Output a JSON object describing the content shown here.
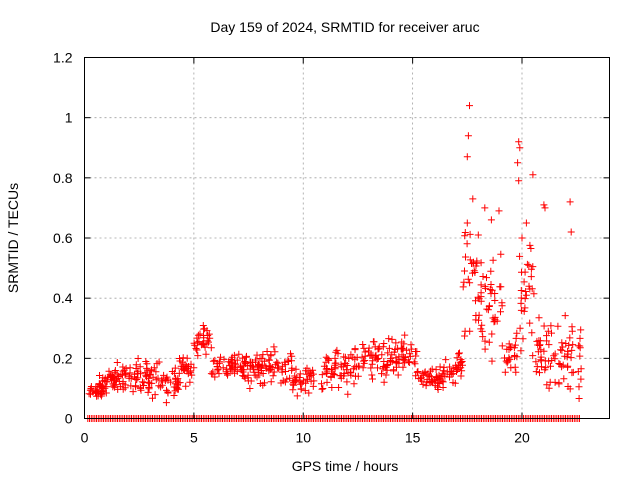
{
  "chart_data": {
    "type": "scatter",
    "title": "Day 159 of 2024, SRMTID for receiver aruc",
    "xlabel": "GPS time / hours",
    "ylabel": "SRMTID / TECUs",
    "xlim": [
      0,
      24
    ],
    "ylim": [
      0,
      1.2
    ],
    "xticks": [
      0,
      5,
      10,
      15,
      20
    ],
    "yticks": [
      0,
      0.2,
      0.4,
      0.6,
      0.8,
      1,
      1.2
    ],
    "xtick_labels": [
      "0",
      "5",
      "10",
      "15",
      "20"
    ],
    "ytick_labels": [
      "0",
      "0.2",
      "0.4",
      "0.6",
      "0.8",
      "1",
      "1.2"
    ],
    "grid": true,
    "marker": "+",
    "color": "#ff0000",
    "series": [
      {
        "name": "SRMTID",
        "x_range": [
          0.15,
          22.7
        ],
        "zero_level_x_step": 0.08,
        "clusters": [
          {
            "x": [
              0.2,
              1.0
            ],
            "y_mean": 0.09,
            "y_spread": 0.02
          },
          {
            "x": [
              0.6,
              1.4
            ],
            "y_mean": 0.13,
            "y_spread": 0.03
          },
          {
            "x": [
              1.4,
              2.4
            ],
            "y_mean": 0.14,
            "y_spread": 0.04
          },
          {
            "x": [
              2.4,
              3.5
            ],
            "y_mean": 0.13,
            "y_spread": 0.06
          },
          {
            "x": [
              3.5,
              4.3
            ],
            "y_mean": 0.11,
            "y_spread": 0.05
          },
          {
            "x": [
              4.3,
              5.0
            ],
            "y_mean": 0.16,
            "y_spread": 0.06
          },
          {
            "x": [
              5.0,
              5.8
            ],
            "y_mean": 0.26,
            "y_spread": 0.05
          },
          {
            "x": [
              5.8,
              7.5
            ],
            "y_mean": 0.17,
            "y_spread": 0.04
          },
          {
            "x": [
              7.5,
              9.5
            ],
            "y_mean": 0.17,
            "y_spread": 0.05
          },
          {
            "x": [
              9.5,
              10.5
            ],
            "y_mean": 0.13,
            "y_spread": 0.04
          },
          {
            "x": [
              10.8,
              12.5
            ],
            "y_mean": 0.17,
            "y_spread": 0.06
          },
          {
            "x": [
              12.5,
              14.0
            ],
            "y_mean": 0.2,
            "y_spread": 0.06
          },
          {
            "x": [
              14.0,
              15.2
            ],
            "y_mean": 0.21,
            "y_spread": 0.06
          },
          {
            "x": [
              15.2,
              16.4
            ],
            "y_mean": 0.13,
            "y_spread": 0.03
          },
          {
            "x": [
              16.4,
              17.3
            ],
            "y_mean": 0.17,
            "y_spread": 0.06
          },
          {
            "x": [
              17.3,
              18.0
            ],
            "y_mean": 0.45,
            "y_spread": 0.16
          },
          {
            "x": [
              18.0,
              19.2
            ],
            "y_mean": 0.38,
            "y_spread": 0.14
          },
          {
            "x": [
              19.2,
              19.8
            ],
            "y_mean": 0.2,
            "y_spread": 0.07
          },
          {
            "x": [
              19.8,
              20.6
            ],
            "y_mean": 0.42,
            "y_spread": 0.15
          },
          {
            "x": [
              20.6,
              21.6
            ],
            "y_mean": 0.22,
            "y_spread": 0.12
          },
          {
            "x": [
              21.6,
              22.7
            ],
            "y_mean": 0.2,
            "y_spread": 0.12
          }
        ],
        "outliers": [
          [
            17.6,
            1.04
          ],
          [
            17.55,
            0.94
          ],
          [
            17.5,
            0.87
          ],
          [
            19.85,
            0.92
          ],
          [
            19.9,
            0.9
          ],
          [
            19.8,
            0.85
          ],
          [
            20.5,
            0.81
          ],
          [
            19.85,
            0.79
          ],
          [
            17.75,
            0.73
          ],
          [
            21.0,
            0.71
          ],
          [
            21.05,
            0.7
          ],
          [
            22.2,
            0.72
          ],
          [
            18.3,
            0.7
          ],
          [
            18.95,
            0.69
          ],
          [
            17.5,
            0.65
          ],
          [
            18.6,
            0.66
          ],
          [
            18.0,
            0.61
          ],
          [
            20.2,
            0.65
          ],
          [
            22.25,
            0.62
          ],
          [
            20.0,
            0.6
          ]
        ]
      }
    ]
  }
}
